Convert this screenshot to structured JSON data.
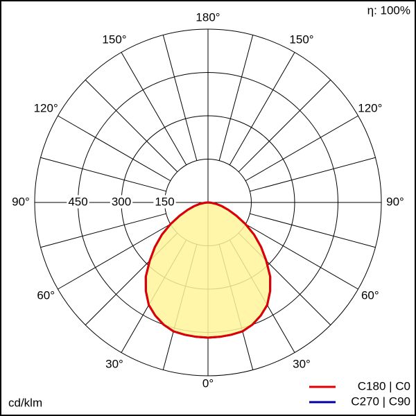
{
  "chart_data": {
    "type": "polar",
    "efficiency_label": "η: 100%",
    "unit_label": "cd/klm",
    "theta": [
      -90,
      -85,
      -80,
      -75,
      -70,
      -65,
      -60,
      -55,
      -50,
      -45,
      -40,
      -35,
      -30,
      -25,
      -20,
      -15,
      -10,
      -5,
      0,
      5,
      10,
      15,
      20,
      25,
      30,
      35,
      40,
      45,
      50,
      55,
      60,
      65,
      70,
      75,
      80,
      85,
      90
    ],
    "series": [
      {
        "name": "C270 | C90",
        "color": "#0000a0",
        "values": [
          0,
          10,
          28,
          50,
          75,
          108,
          150,
          195,
          240,
          285,
          335,
          375,
          410,
          432,
          450,
          462,
          465,
          467,
          468,
          467,
          465,
          462,
          450,
          432,
          410,
          375,
          335,
          285,
          240,
          195,
          150,
          108,
          75,
          50,
          28,
          10,
          0
        ]
      },
      {
        "name": "C180 | C0",
        "color": "#e00000",
        "fill": "#fff59a",
        "values": [
          0,
          10,
          28,
          50,
          75,
          108,
          150,
          195,
          240,
          285,
          335,
          375,
          410,
          432,
          450,
          462,
          465,
          467,
          468,
          467,
          465,
          462,
          450,
          432,
          410,
          375,
          335,
          285,
          240,
          195,
          150,
          108,
          75,
          50,
          28,
          10,
          0
        ]
      }
    ],
    "rlim": [
      0,
      600
    ],
    "rticks": [
      150,
      300,
      450
    ],
    "angle_ticks": [
      {
        "value": 0,
        "label": "0°"
      },
      {
        "value": 30,
        "label": "30°"
      },
      {
        "value": 60,
        "label": "60°"
      },
      {
        "value": 90,
        "label": "90°"
      },
      {
        "value": 120,
        "label": "120°"
      },
      {
        "value": 150,
        "label": "150°"
      },
      {
        "value": 180,
        "label": "180°"
      }
    ]
  }
}
